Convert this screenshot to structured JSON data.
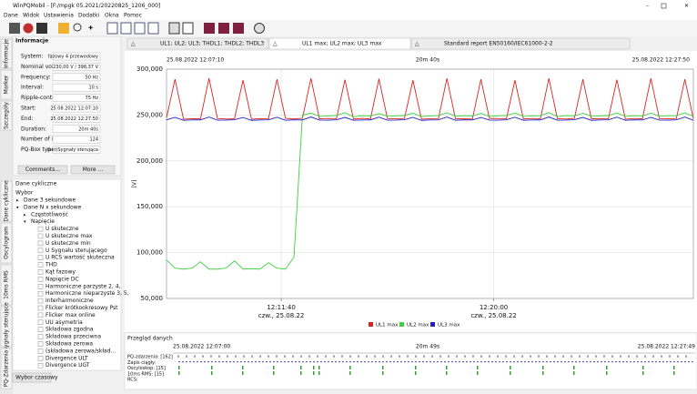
{
  "window": {
    "title": "WinPQMobil - [F:/mpgk 05.2021/20220825_1206_000]",
    "menu": [
      "Dane",
      "Widok",
      "Ustawienia",
      "Dodatki",
      "Okna",
      "Pomoc"
    ]
  },
  "side_tabs_top": [
    "Informacje",
    "Marker",
    "Szczegóły"
  ],
  "side_tabs_bottom": [
    "Dane cykliczne",
    "Oscylogram",
    "10ms RMS",
    "Sygnały sterujące",
    "PQ-Zdarzenia"
  ],
  "info": {
    "title": "Informacje",
    "rows": [
      [
        "System:",
        "fazowy 4 przewodowy"
      ],
      [
        "Nominal voltage:",
        "230,00 V / 398,37 V"
      ],
      [
        "Frequency:",
        "50 Hz"
      ],
      [
        "Interval:",
        "10 s"
      ],
      [
        "Ripple-control:",
        "75 Hz"
      ],
      [
        "Start:",
        "25.08.2022 12:07:10"
      ],
      [
        "End:",
        "25.08.2022 12:27:50"
      ],
      [
        "Duration:",
        "20m 40s"
      ],
      [
        "Number of int:",
        "124"
      ],
      [
        "PQ-Box type:",
        "(set)Sygnały sterująca"
      ]
    ],
    "buttons": [
      "Comments...",
      "More ..."
    ]
  },
  "cyclic": {
    "title": "Dane cykliczne",
    "subtitle": "Wybor",
    "items": [
      {
        "label": "Dane 3 sekundowe"
      },
      {
        "label": "Dane N x sekundowe",
        "children": [
          {
            "label": "Częstotliwość"
          },
          {
            "label": "Napięcie",
            "children": [
              {
                "label": "U skuteczne"
              },
              {
                "label": "U skuteczne max"
              },
              {
                "label": "U skuteczne min"
              },
              {
                "label": "U Sygnału sterującego"
              },
              {
                "label": "U RCS wartość skuteczna"
              },
              {
                "label": "THD"
              },
              {
                "label": "Kąt fazowy"
              },
              {
                "label": "Napięcie DC"
              },
              {
                "label": "Harmoniczne parzyste 2, 4,"
              },
              {
                "label": "Harmoniczne nieparzyste 3, 5,"
              },
              {
                "label": "Interharmoniczne"
              },
              {
                "label": "Flicker krótkookresowy Pst"
              },
              {
                "label": "Flicker max online"
              },
              {
                "label": "UU asymetria"
              },
              {
                "label": "Składowa zgodna"
              },
              {
                "label": "Składowa przeciwna"
              },
              {
                "label": "Składowa zerowa"
              },
              {
                "label": "(składowa zerowa/skład..."
              },
              {
                "label": "Divergence ULT"
              },
              {
                "label": "Divergence UGT"
              }
            ]
          }
        ]
      }
    ]
  },
  "time_button": "Wybor czasowy",
  "tabs": [
    "UL1; UL2; UL3; THDL1; THDL2; THDL3",
    "UL1 max; UL2 max; UL3 max",
    "Standard report EN50160/IEC61000-2-2"
  ],
  "chart_data": {
    "type": "line",
    "header": {
      "start": "25.08.2022 12:07:10",
      "duration": "20m 40s",
      "end": "25.08.2022 12:27:50"
    },
    "ylabel": "[V]",
    "x": [
      "12:07:10",
      "12:07:30",
      "12:07:50",
      "12:08:10",
      "12:08:30",
      "12:08:50",
      "12:09:10",
      "12:09:30",
      "12:09:50",
      "12:10:10",
      "12:10:30",
      "12:10:50",
      "12:11:10",
      "12:11:30",
      "12:11:50",
      "12:12:10",
      "12:12:30",
      "12:12:50",
      "12:13:10",
      "12:13:30",
      "12:13:50",
      "12:14:10",
      "12:14:30",
      "12:14:50",
      "12:15:10",
      "12:15:30",
      "12:15:50",
      "12:16:10",
      "12:16:30",
      "12:16:50",
      "12:17:10",
      "12:17:30",
      "12:17:50",
      "12:18:10",
      "12:18:30",
      "12:18:50",
      "12:19:10",
      "12:19:30",
      "12:19:50",
      "12:20:10",
      "12:20:30",
      "12:20:50",
      "12:21:10",
      "12:21:30",
      "12:21:50",
      "12:22:10",
      "12:22:30",
      "12:22:50",
      "12:23:10",
      "12:23:30",
      "12:23:50",
      "12:24:10",
      "12:24:30",
      "12:24:50",
      "12:25:10",
      "12:25:30",
      "12:25:50",
      "12:26:10",
      "12:26:30",
      "12:26:50",
      "12:27:10",
      "12:27:30",
      "12:27:50"
    ],
    "xlim": [
      "12:07:10",
      "12:27:50"
    ],
    "xticks": [
      {
        "value": "12:11:40",
        "label": "12:11:40",
        "date": "czw., 25.08.22"
      },
      {
        "value": "12:20:00",
        "label": "12:20:00",
        "date": "czw., 25.08.22"
      }
    ],
    "ylim": [
      50000,
      300000
    ],
    "yticks": [
      {
        "value": 50000,
        "label": "50,000"
      },
      {
        "value": 100000,
        "label": "100,000"
      },
      {
        "value": 150000,
        "label": "150,000"
      },
      {
        "value": 200000,
        "label": "200,000"
      },
      {
        "value": 250000,
        "label": "250,000"
      },
      {
        "value": 300000,
        "label": "300,000"
      }
    ],
    "grid": true,
    "legend": "bottom",
    "series": [
      {
        "name": "UL1 max",
        "color": "#e02020",
        "values": [
          247000,
          289000,
          245500,
          246000,
          245800,
          290000,
          246200,
          245600,
          246000,
          288000,
          245400,
          246100,
          245900,
          289000,
          246300,
          245700,
          246500,
          290000,
          245800,
          246200,
          246000,
          288500,
          245600,
          246400,
          245700,
          289500,
          246100,
          245900,
          246200,
          288000,
          245500,
          246000,
          246100,
          290000,
          245900,
          245800,
          245600,
          289000,
          246300,
          246100,
          246000,
          288000,
          245700,
          246200,
          245900,
          290000,
          246000,
          245600,
          246300,
          289000,
          245800,
          246100,
          246000,
          288500,
          245500,
          246200,
          245800,
          290000,
          246100,
          245900,
          246200,
          289000,
          246000
        ]
      },
      {
        "name": "UL2 max",
        "color": "#40d040",
        "values": [
          92000,
          83000,
          82000,
          83000,
          90000,
          82000,
          82000,
          83000,
          91000,
          82000,
          82500,
          82000,
          89000,
          83000,
          82000,
          95000,
          250000,
          252000,
          248500,
          249000,
          249500,
          252500,
          248000,
          249200,
          249000,
          251500,
          248600,
          249100,
          249400,
          252000,
          248300,
          249000,
          249300,
          252500,
          248700,
          249200,
          249000,
          251800,
          248400,
          249100,
          249500,
          252200,
          248500,
          249000,
          249200,
          252600,
          248200,
          249300,
          249100,
          251900,
          248600,
          249000,
          249400,
          252300,
          248400,
          249200,
          249000,
          252000,
          248700,
          249100,
          249300,
          252400,
          248500
        ]
      },
      {
        "name": "UL3 max",
        "color": "#2020c0",
        "values": [
          244800,
          247500,
          244300,
          244600,
          244700,
          247800,
          244400,
          244500,
          244900,
          247300,
          244200,
          244600,
          244800,
          247600,
          244300,
          244700,
          244600,
          247900,
          244500,
          244400,
          244800,
          247400,
          244300,
          244600,
          244700,
          247700,
          244400,
          244500,
          244900,
          247500,
          244200,
          244600,
          244800,
          247800,
          244300,
          244700,
          244600,
          247300,
          244500,
          244400,
          244800,
          247600,
          244300,
          244600,
          244700,
          247900,
          244400,
          244500,
          244900,
          247400,
          244200,
          244600,
          244800,
          247700,
          244300,
          244700,
          244600,
          247500,
          244500,
          244400,
          244800,
          247800,
          244300
        ]
      }
    ]
  },
  "overview": {
    "title": "Przegląd danych",
    "start": "25.08.2022 12:07:00",
    "duration": "20m 49s",
    "end": "25.08.2022 12:27:49",
    "rows": [
      "PQ-zdarzenia: [162]",
      "Zapis ciągły:",
      "Oscyloskop: [15]",
      "10ms RMS: [15]",
      "RCS:"
    ]
  }
}
